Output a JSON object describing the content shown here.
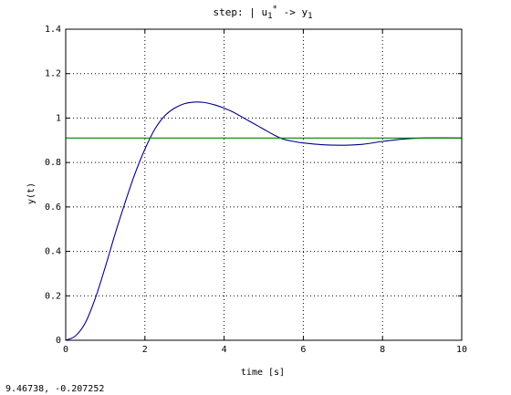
{
  "chart_data": {
    "type": "line",
    "title": {
      "prefix": "step: | u",
      "sub1": "1",
      "sup": "*",
      "arrow": " -> y",
      "sub2": "1"
    },
    "xlabel": "time [s]",
    "ylabel": "y(t)",
    "xlim": [
      0,
      10
    ],
    "ylim": [
      0,
      1.4
    ],
    "xticks": [
      0,
      2,
      4,
      6,
      8,
      10
    ],
    "xtick_labels": [
      "0",
      "2",
      "4",
      "6",
      "8",
      "10"
    ],
    "yticks": [
      0,
      0.2,
      0.4,
      0.6,
      0.8,
      1,
      1.2,
      1.4
    ],
    "ytick_labels": [
      "0",
      "0.2",
      "0.4",
      "0.6",
      "0.8",
      "1",
      "1.2",
      "1.4"
    ],
    "grid": true,
    "series": [
      {
        "color": "#00008b",
        "x": [
          0,
          0.25,
          0.5,
          0.75,
          1.0,
          1.25,
          1.5,
          1.75,
          2.0,
          2.25,
          2.5,
          2.75,
          3.0,
          3.25,
          3.5,
          3.75,
          4.0,
          4.25,
          4.5,
          4.75,
          5.0,
          5.25,
          5.5,
          5.75,
          6.0,
          6.5,
          7.0,
          7.5,
          8.0,
          8.5,
          9.0,
          9.5,
          10.0
        ],
        "y": [
          0,
          0.02,
          0.08,
          0.19,
          0.33,
          0.48,
          0.62,
          0.75,
          0.86,
          0.95,
          1.01,
          1.045,
          1.065,
          1.072,
          1.07,
          1.06,
          1.045,
          1.025,
          1.0,
          0.975,
          0.95,
          0.925,
          0.905,
          0.895,
          0.888,
          0.88,
          0.878,
          0.882,
          0.895,
          0.905,
          0.91,
          0.911,
          0.91
        ]
      },
      {
        "color": "#008000",
        "x": [
          0,
          10
        ],
        "y": [
          0.91,
          0.91
        ]
      }
    ]
  },
  "status": {
    "coordinates": "9.46738, -0.207252"
  }
}
